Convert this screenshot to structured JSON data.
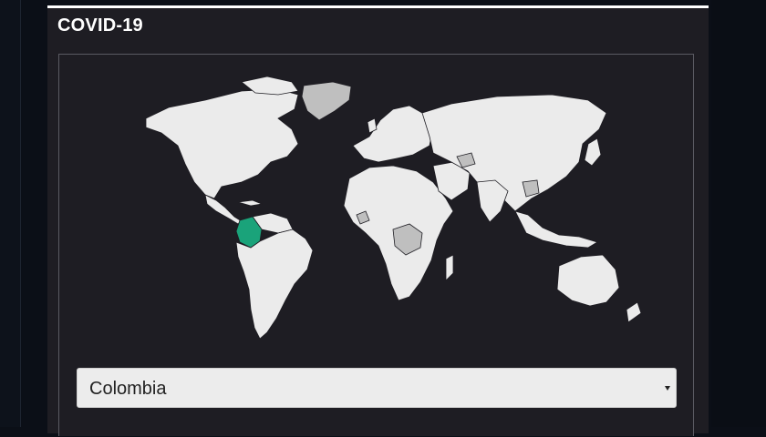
{
  "panel": {
    "title": "COVID-19"
  },
  "map": {
    "selected_country": "Colombia",
    "colors": {
      "land": "#ebebeb",
      "no_data": "#bfbfbf",
      "selected": "#1aa37a",
      "background": "#1e1d23"
    }
  },
  "country_select": {
    "value": "Colombia"
  }
}
